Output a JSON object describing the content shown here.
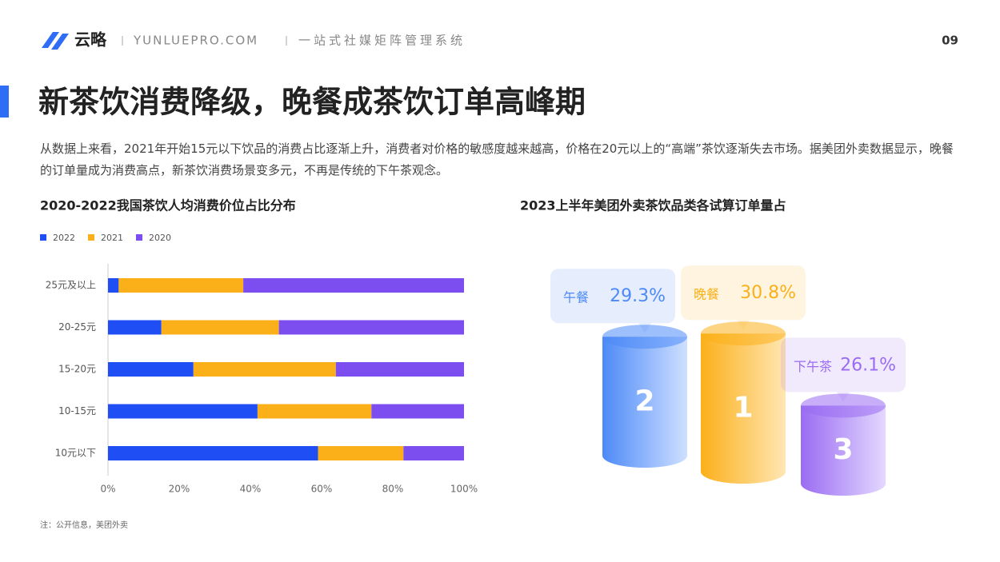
{
  "header": {
    "brand": "云略",
    "site": "YUNLUEPRO.COM",
    "slogan": "一站式社媒矩阵管理系统",
    "page": "09"
  },
  "title": "新茶饮消费降级，晚餐成茶饮订单高峰期",
  "description": "从数据上来看，2021年开始15元以下饮品的消费占比逐渐上升，消费者对价格的敏感度越来越高，价格在20元以上的“高端”茶饮逐渐失去市场。据美团外卖数据显示，晚餐的订单量成为消费高点，新茶饮消费场景变多元，不再是传统的下午茶观念。",
  "chart_data": [
    {
      "type": "stacked-bar",
      "title": "2020-2022我国茶饮人均消费价位占比分布",
      "categories": [
        "25元及以上",
        "20-25元",
        "15-20元",
        "10-15元",
        "10元以下"
      ],
      "series": [
        {
          "name": "2022",
          "color": "#1f4ef5",
          "values": [
            3,
            15,
            24,
            42,
            59
          ]
        },
        {
          "name": "2021",
          "color": "#fbb01a",
          "values": [
            35,
            33,
            40,
            32,
            24
          ]
        },
        {
          "name": "2020",
          "color": "#7c4ef0",
          "values": [
            62,
            52,
            36,
            26,
            17
          ]
        }
      ],
      "xlim": [
        0,
        100
      ],
      "xticks": [
        {
          "value": 0,
          "label": "0%"
        },
        {
          "value": 20,
          "label": "20%"
        },
        {
          "value": 40,
          "label": "40%"
        },
        {
          "value": 60,
          "label": "60%"
        },
        {
          "value": 80,
          "label": "80%"
        },
        {
          "value": 100,
          "label": "100%"
        }
      ],
      "grid": false
    },
    {
      "type": "cylinder",
      "title": "2023上半年美团外卖茶饮品类各试算订单量占",
      "categories": [
        "午餐",
        "晚餐",
        "下午茶"
      ],
      "values": [
        29.3,
        30.8,
        26.1
      ],
      "value_labels": [
        "29.3%",
        "30.8%",
        "26.1%"
      ],
      "ranks": [
        2,
        1,
        3
      ],
      "colors": [
        "#4d8af7",
        "#fbb01a",
        "#9a6cf2"
      ]
    }
  ],
  "source": "注：公开信息，美团外卖"
}
